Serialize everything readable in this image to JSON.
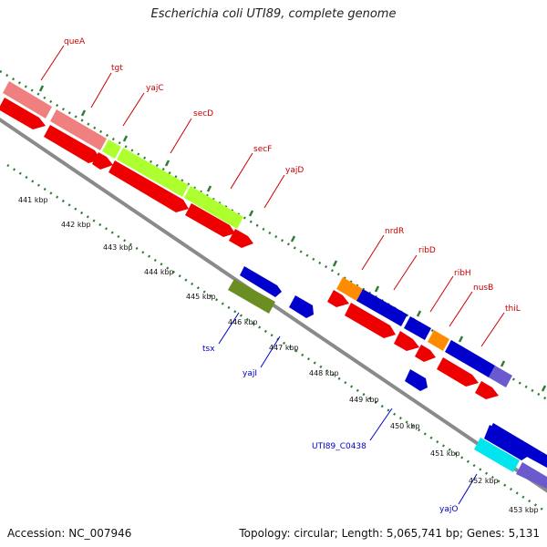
{
  "title": "Escherichia coli UTI89, complete genome",
  "accession": "Accession: NC_007946",
  "summary": "Topology: circular; Length: 5,065,741 bp; Genes: 5,131",
  "colors": {
    "forward_label": "#cc0000",
    "reverse_label": "#0000cc",
    "tick": "#2e7d32",
    "backbone": "#888888"
  },
  "scale_labels": [
    "441 kbp",
    "442 kbp",
    "443 kbp",
    "444 kbp",
    "445 kbp",
    "446 kbp",
    "447 kbp",
    "448 kbp",
    "449 kbp",
    "450 kbp",
    "451 kbp",
    "452 kbp",
    "453 kbp"
  ],
  "gene_labels_forward": [
    "queA",
    "tgt",
    "yajC",
    "secD",
    "secF",
    "yajD",
    "nrdR",
    "ribD",
    "ribH",
    "nusB",
    "thiL"
  ],
  "gene_labels_reverse": [
    "tsx",
    "yajI",
    "UTI89_C0438",
    "yajO"
  ]
}
